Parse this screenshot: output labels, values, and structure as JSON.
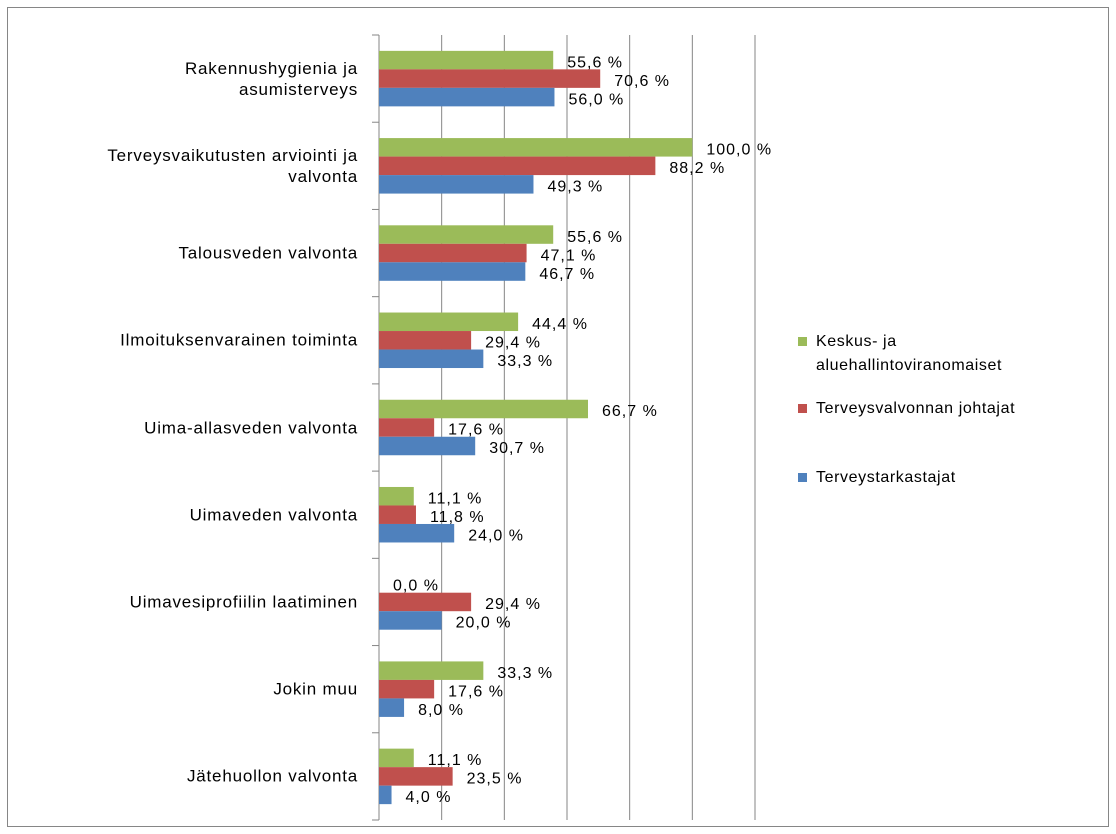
{
  "chart_data": {
    "type": "bar",
    "orientation": "horizontal",
    "categories": [
      "Rakennushygienia ja\nasumisterveys",
      "Terveysvaikutusten arviointi ja\nvalvonta",
      "Talousveden valvonta",
      "Ilmoituksenvarainen toiminta",
      "Uima-allasveden valvonta",
      "Uimaveden valvonta",
      "Uimavesiprofiilin laatiminen",
      "Jokin muu",
      "Jätehuollon valvonta"
    ],
    "series": [
      {
        "name": "Keskus- ja aluehallintoviranomaiset",
        "color": "#9bbb59",
        "values": [
          55.6,
          100.0,
          55.6,
          44.4,
          66.7,
          11.1,
          0.0,
          33.3,
          11.1
        ],
        "value_labels": [
          "55,6 %",
          "100,0 %",
          "55,6 %",
          "44,4 %",
          "66,7 %",
          "11,1 %",
          "0,0 %",
          "33,3 %",
          "11,1 %"
        ]
      },
      {
        "name": "Terveysvalvonnan johtajat",
        "color": "#c0504d",
        "values": [
          70.6,
          88.2,
          47.1,
          29.4,
          17.6,
          11.8,
          29.4,
          17.6,
          23.5
        ],
        "value_labels": [
          "70,6 %",
          "88,2 %",
          "47,1 %",
          "29,4 %",
          "17,6 %",
          "11,8 %",
          "29,4 %",
          "17,6 %",
          "23,5 %"
        ]
      },
      {
        "name": "Terveystarkastajat",
        "color": "#4f81bd",
        "values": [
          56.0,
          49.3,
          46.7,
          33.3,
          30.7,
          24.0,
          20.0,
          8.0,
          4.0
        ],
        "value_labels": [
          "56,0 %",
          "49,3 %",
          "46,7 %",
          "33,3 %",
          "30,7 %",
          "24,0 %",
          "20,0 %",
          "8,0 %",
          "4,0 %"
        ]
      }
    ],
    "xlim": [
      0,
      120
    ],
    "xticks": [
      0,
      20,
      40,
      60,
      80,
      100,
      120
    ],
    "grid": true,
    "legend": "right"
  }
}
